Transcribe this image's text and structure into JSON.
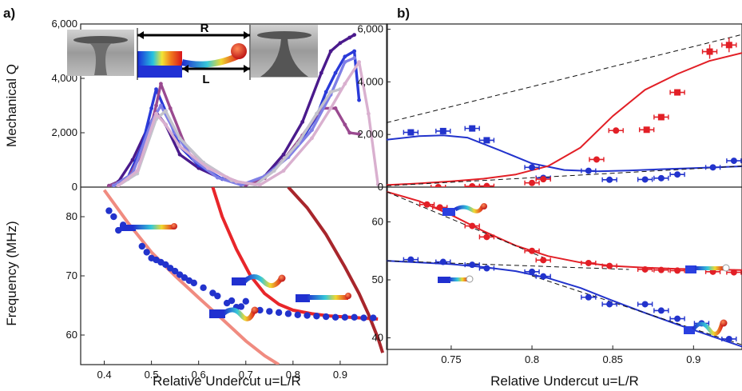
{
  "figure": {
    "panel_a_label": "a)",
    "panel_b_label": "b)"
  },
  "inset": {
    "r_label": "R",
    "l_label": "L"
  },
  "chart_data": [
    {
      "panel": "a-top",
      "type": "line",
      "xlabel": "",
      "ylabel": "Mechanical Q",
      "xlim": [
        0.35,
        1.0
      ],
      "ylim": [
        0,
        6000
      ],
      "yticks": [
        0,
        2000,
        4000,
        6000
      ],
      "ytick_labels": [
        "0",
        "2,000",
        "4,000",
        "6,000"
      ],
      "series": [
        {
          "name": "dark purple",
          "color": "#4a1a8c",
          "x": [
            0.41,
            0.43,
            0.46,
            0.49,
            0.51,
            0.53,
            0.56,
            0.6,
            0.65,
            0.7,
            0.74,
            0.78,
            0.82,
            0.86,
            0.88,
            0.9,
            0.92,
            0.93
          ],
          "y": [
            50,
            200,
            1000,
            2100,
            2750,
            2300,
            1200,
            700,
            300,
            80,
            400,
            1200,
            2400,
            4200,
            5000,
            5300,
            5500,
            5600
          ]
        },
        {
          "name": "blue",
          "color": "#2a3ad8",
          "x": [
            0.42,
            0.45,
            0.48,
            0.5,
            0.51,
            0.53,
            0.56,
            0.6,
            0.65,
            0.7,
            0.74,
            0.78,
            0.82,
            0.85,
            0.87,
            0.89,
            0.91,
            0.93,
            0.94
          ],
          "y": [
            60,
            350,
            1500,
            2900,
            3600,
            2800,
            1500,
            800,
            300,
            80,
            350,
            1000,
            1800,
            2600,
            3500,
            4200,
            4800,
            5000,
            3200
          ]
        },
        {
          "name": "mid purple",
          "color": "#9a4a90",
          "x": [
            0.41,
            0.45,
            0.49,
            0.51,
            0.52,
            0.54,
            0.57,
            0.61,
            0.66,
            0.7,
            0.74,
            0.78,
            0.82,
            0.86,
            0.89,
            0.91,
            0.92,
            0.94
          ],
          "y": [
            50,
            300,
            1600,
            3000,
            3800,
            2900,
            1600,
            900,
            350,
            80,
            330,
            1000,
            1900,
            2900,
            2900,
            2300,
            2000,
            1950
          ]
        },
        {
          "name": "lilac",
          "color": "#7f7fe6",
          "x": [
            0.42,
            0.46,
            0.5,
            0.52,
            0.55,
            0.59,
            0.64,
            0.69,
            0.74,
            0.79,
            0.84,
            0.88,
            0.91,
            0.93
          ],
          "y": [
            60,
            500,
            2400,
            3000,
            2000,
            1000,
            350,
            80,
            400,
            1100,
            2100,
            3400,
            4600,
            4750
          ]
        },
        {
          "name": "silver",
          "color": "#c3c3cc",
          "x": [
            0.43,
            0.47,
            0.51,
            0.53,
            0.56,
            0.61,
            0.67,
            0.72,
            0.76,
            0.81,
            0.85,
            0.88,
            0.9
          ],
          "y": [
            60,
            500,
            2500,
            2800,
            1800,
            900,
            250,
            80,
            600,
            1600,
            2700,
            3500,
            3600
          ]
        },
        {
          "name": "pale pink",
          "color": "#d9b0cf",
          "x": [
            0.43,
            0.47,
            0.51,
            0.53,
            0.56,
            0.62,
            0.68,
            0.73,
            0.78,
            0.84,
            0.88,
            0.91,
            0.94,
            0.96,
            0.98
          ],
          "y": [
            60,
            600,
            2700,
            2300,
            1500,
            700,
            200,
            80,
            600,
            1800,
            2900,
            3800,
            4600,
            2700,
            100
          ]
        }
      ]
    },
    {
      "panel": "a-bottom",
      "type": "scatter",
      "xlabel": "Relative Undercut u=L/R",
      "ylabel": "Frequency (MHz)",
      "xlim": [
        0.35,
        1.0
      ],
      "ylim": [
        55,
        85
      ],
      "xticks": [
        0.4,
        0.5,
        0.6,
        0.7,
        0.8,
        0.9
      ],
      "xtick_labels": [
        "0.4",
        "0.5",
        "0.6",
        "0.7",
        "0.8",
        "0.9"
      ],
      "yticks": [
        60,
        70,
        80
      ],
      "ytick_labels": [
        "60",
        "70",
        "80"
      ],
      "points": {
        "name": "measured",
        "color": "#2233cc",
        "x": [
          0.41,
          0.42,
          0.43,
          0.44,
          0.48,
          0.49,
          0.5,
          0.51,
          0.52,
          0.53,
          0.54,
          0.55,
          0.56,
          0.57,
          0.58,
          0.59,
          0.61,
          0.63,
          0.64,
          0.66,
          0.67,
          0.68,
          0.69,
          0.7,
          0.73,
          0.75,
          0.77,
          0.79,
          0.81,
          0.83,
          0.85,
          0.87,
          0.89,
          0.91,
          0.93,
          0.95,
          0.97
        ],
        "y": [
          81.0,
          80.0,
          77.7,
          78.6,
          75.0,
          74.0,
          73.0,
          72.7,
          72.3,
          71.9,
          71.3,
          70.8,
          70.2,
          69.7,
          69.2,
          68.8,
          68.0,
          67.1,
          66.6,
          65.4,
          65.8,
          64.7,
          64.8,
          65.7,
          64.2,
          64.0,
          63.8,
          63.6,
          63.4,
          63.3,
          63.2,
          63.1,
          63.0,
          63.0,
          63.0,
          62.9,
          62.9
        ]
      },
      "curves": [
        {
          "name": "salmon model",
          "color": "#f08b80",
          "x": [
            0.4,
            0.45,
            0.5,
            0.55,
            0.6,
            0.65,
            0.7,
            0.74,
            0.77
          ],
          "y": [
            84.5,
            79.0,
            74.0,
            70.0,
            66.3,
            62.7,
            59.0,
            56.5,
            55.0
          ]
        },
        {
          "name": "red model",
          "color": "#e8262a",
          "x": [
            0.63,
            0.65,
            0.68,
            0.71,
            0.74,
            0.77,
            0.8,
            0.84,
            0.88,
            0.92,
            0.96,
            0.98
          ],
          "y": [
            85.0,
            80.0,
            74.5,
            70.0,
            67.0,
            65.2,
            64.2,
            63.6,
            63.2,
            63.0,
            62.8,
            62.7
          ]
        },
        {
          "name": "dark red model",
          "color": "#a8262c",
          "x": [
            0.79,
            0.83,
            0.87,
            0.91,
            0.94,
            0.96,
            0.98,
            0.99
          ],
          "y": [
            85.0,
            81.5,
            77.0,
            71.5,
            67.0,
            63.5,
            59.5,
            57.0
          ]
        }
      ]
    },
    {
      "panel": "b-top",
      "type": "scatter",
      "xlabel": "",
      "ylabel": "",
      "xlim": [
        0.71,
        0.93
      ],
      "ylim": [
        0,
        6200
      ],
      "yticks": [
        0,
        2000,
        4000,
        6000
      ],
      "ytick_labels": [
        "0",
        "2,000",
        "4,000",
        "6,000"
      ],
      "series": [
        {
          "name": "blue data",
          "color": "#2233cc",
          "x": [
            0.725,
            0.745,
            0.763,
            0.772,
            0.8,
            0.807,
            0.835,
            0.848,
            0.87,
            0.88,
            0.89,
            0.912,
            0.925
          ],
          "y": [
            2080,
            2130,
            2230,
            1780,
            750,
            350,
            620,
            280,
            290,
            340,
            480,
            750,
            1000
          ]
        },
        {
          "name": "red data",
          "color": "#e21f26",
          "x": [
            0.742,
            0.763,
            0.772,
            0.8,
            0.807,
            0.84,
            0.852,
            0.871,
            0.88,
            0.89,
            0.91,
            0.922
          ],
          "y": [
            0,
            30,
            40,
            160,
            300,
            1050,
            2150,
            2180,
            2660,
            3600,
            5150,
            5400
          ]
        }
      ],
      "curves": [
        {
          "name": "blue fit",
          "color": "#2233cc",
          "x": [
            0.71,
            0.73,
            0.745,
            0.76,
            0.78,
            0.8,
            0.82,
            0.84,
            0.86,
            0.88,
            0.9,
            0.93
          ],
          "y": [
            1800,
            1940,
            1970,
            1880,
            1400,
            900,
            650,
            600,
            630,
            680,
            720,
            790
          ]
        },
        {
          "name": "red fit",
          "color": "#e21f26",
          "x": [
            0.71,
            0.73,
            0.75,
            0.77,
            0.79,
            0.81,
            0.83,
            0.85,
            0.87,
            0.89,
            0.91,
            0.93
          ],
          "y": [
            80,
            140,
            220,
            320,
            480,
            800,
            1500,
            2700,
            3700,
            4300,
            4800,
            5100
          ]
        },
        {
          "name": "dashed upper",
          "color": "#111111",
          "dashed": true,
          "x": [
            0.71,
            0.93
          ],
          "y": [
            2450,
            5800
          ]
        },
        {
          "name": "dashed lower",
          "color": "#111111",
          "dashed": true,
          "x": [
            0.71,
            0.93
          ],
          "y": [
            50,
            800
          ]
        }
      ]
    },
    {
      "panel": "b-bottom",
      "type": "scatter",
      "xlabel": "Relative Undercut u=L/R",
      "ylabel": "",
      "xlim": [
        0.71,
        0.93
      ],
      "ylim": [
        38,
        66
      ],
      "xticks": [
        0.75,
        0.8,
        0.85,
        0.9
      ],
      "xtick_labels": [
        "0.75",
        "0.8",
        "0.85",
        "0.9"
      ],
      "yticks": [
        40,
        50,
        60
      ],
      "ytick_labels": [
        "40",
        "50",
        "60"
      ],
      "series": [
        {
          "name": "red data",
          "color": "#e21f26",
          "x": [
            0.735,
            0.743,
            0.763,
            0.772,
            0.8,
            0.807,
            0.835,
            0.848,
            0.87,
            0.88,
            0.89,
            0.912,
            0.925
          ],
          "y": [
            63.0,
            62.5,
            59.3,
            57.4,
            55.0,
            53.4,
            52.9,
            52.4,
            51.8,
            51.7,
            51.6,
            51.4,
            51.3
          ]
        },
        {
          "name": "blue data",
          "color": "#2233cc",
          "x": [
            0.725,
            0.745,
            0.763,
            0.772,
            0.8,
            0.807,
            0.835,
            0.848,
            0.87,
            0.88,
            0.89,
            0.905,
            0.922
          ],
          "y": [
            53.5,
            53.1,
            52.6,
            52.0,
            51.4,
            50.6,
            47.0,
            45.8,
            45.8,
            44.7,
            43.3,
            42.5,
            39.8
          ]
        }
      ],
      "curves": [
        {
          "name": "red fit",
          "color": "#e21f26",
          "x": [
            0.71,
            0.73,
            0.75,
            0.77,
            0.79,
            0.81,
            0.83,
            0.85,
            0.87,
            0.89,
            0.91,
            0.93
          ],
          "y": [
            65.2,
            63.6,
            61.2,
            58.4,
            55.9,
            54.1,
            53.0,
            52.4,
            52.1,
            51.9,
            51.8,
            51.7
          ]
        },
        {
          "name": "blue fit",
          "color": "#2233cc",
          "x": [
            0.71,
            0.73,
            0.75,
            0.77,
            0.79,
            0.81,
            0.83,
            0.85,
            0.87,
            0.89,
            0.91,
            0.93
          ],
          "y": [
            53.3,
            53.0,
            52.7,
            52.2,
            51.5,
            50.3,
            48.6,
            46.4,
            44.3,
            42.3,
            40.4,
            38.5
          ]
        },
        {
          "name": "dashed red asymptote",
          "color": "#111111",
          "dashed": true,
          "x": [
            0.71,
            0.81
          ],
          "y": [
            65.2,
            53.5
          ]
        },
        {
          "name": "dashed blue asymptote",
          "color": "#111111",
          "dashed": true,
          "x": [
            0.71,
            0.86
          ],
          "y": [
            53.3,
            51.8
          ]
        },
        {
          "name": "dashed descending",
          "color": "#111111",
          "dashed": true,
          "x": [
            0.8,
            0.93
          ],
          "y": [
            50.7,
            38.8
          ]
        }
      ]
    }
  ]
}
